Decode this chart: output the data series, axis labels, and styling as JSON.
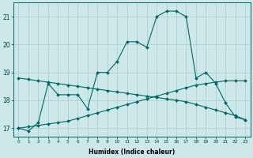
{
  "xlabel": "Humidex (Indice chaleur)",
  "x": [
    0,
    1,
    2,
    3,
    4,
    5,
    6,
    7,
    8,
    9,
    10,
    11,
    12,
    13,
    14,
    15,
    16,
    17,
    18,
    19,
    20,
    21,
    22,
    23
  ],
  "y_main": [
    17.0,
    16.9,
    17.2,
    18.6,
    18.2,
    18.2,
    18.2,
    17.7,
    19.0,
    19.0,
    19.4,
    20.1,
    20.1,
    19.9,
    21.0,
    21.2,
    21.2,
    21.0,
    18.8,
    19.0,
    18.6,
    17.9,
    17.4,
    17.3
  ],
  "y_line1": [
    17.0,
    17.05,
    17.1,
    17.15,
    17.2,
    17.25,
    17.35,
    17.45,
    17.55,
    17.65,
    17.75,
    17.85,
    17.95,
    18.05,
    18.15,
    18.25,
    18.35,
    18.45,
    18.55,
    18.6,
    18.65,
    18.7,
    18.7,
    18.7
  ],
  "y_line2": [
    18.8,
    18.75,
    18.7,
    18.65,
    18.6,
    18.55,
    18.5,
    18.45,
    18.4,
    18.35,
    18.3,
    18.25,
    18.2,
    18.15,
    18.1,
    18.05,
    18.0,
    17.95,
    17.85,
    17.75,
    17.65,
    17.55,
    17.45,
    17.3
  ],
  "bg_color": "#cde8e8",
  "line_color": "#006666",
  "grid_color": "#aacccc",
  "ylim": [
    16.7,
    21.5
  ],
  "yticks": [
    17,
    18,
    19,
    20,
    21
  ],
  "xticks": [
    0,
    1,
    2,
    3,
    4,
    5,
    6,
    7,
    8,
    9,
    10,
    11,
    12,
    13,
    14,
    15,
    16,
    17,
    18,
    19,
    20,
    21,
    22,
    23
  ]
}
